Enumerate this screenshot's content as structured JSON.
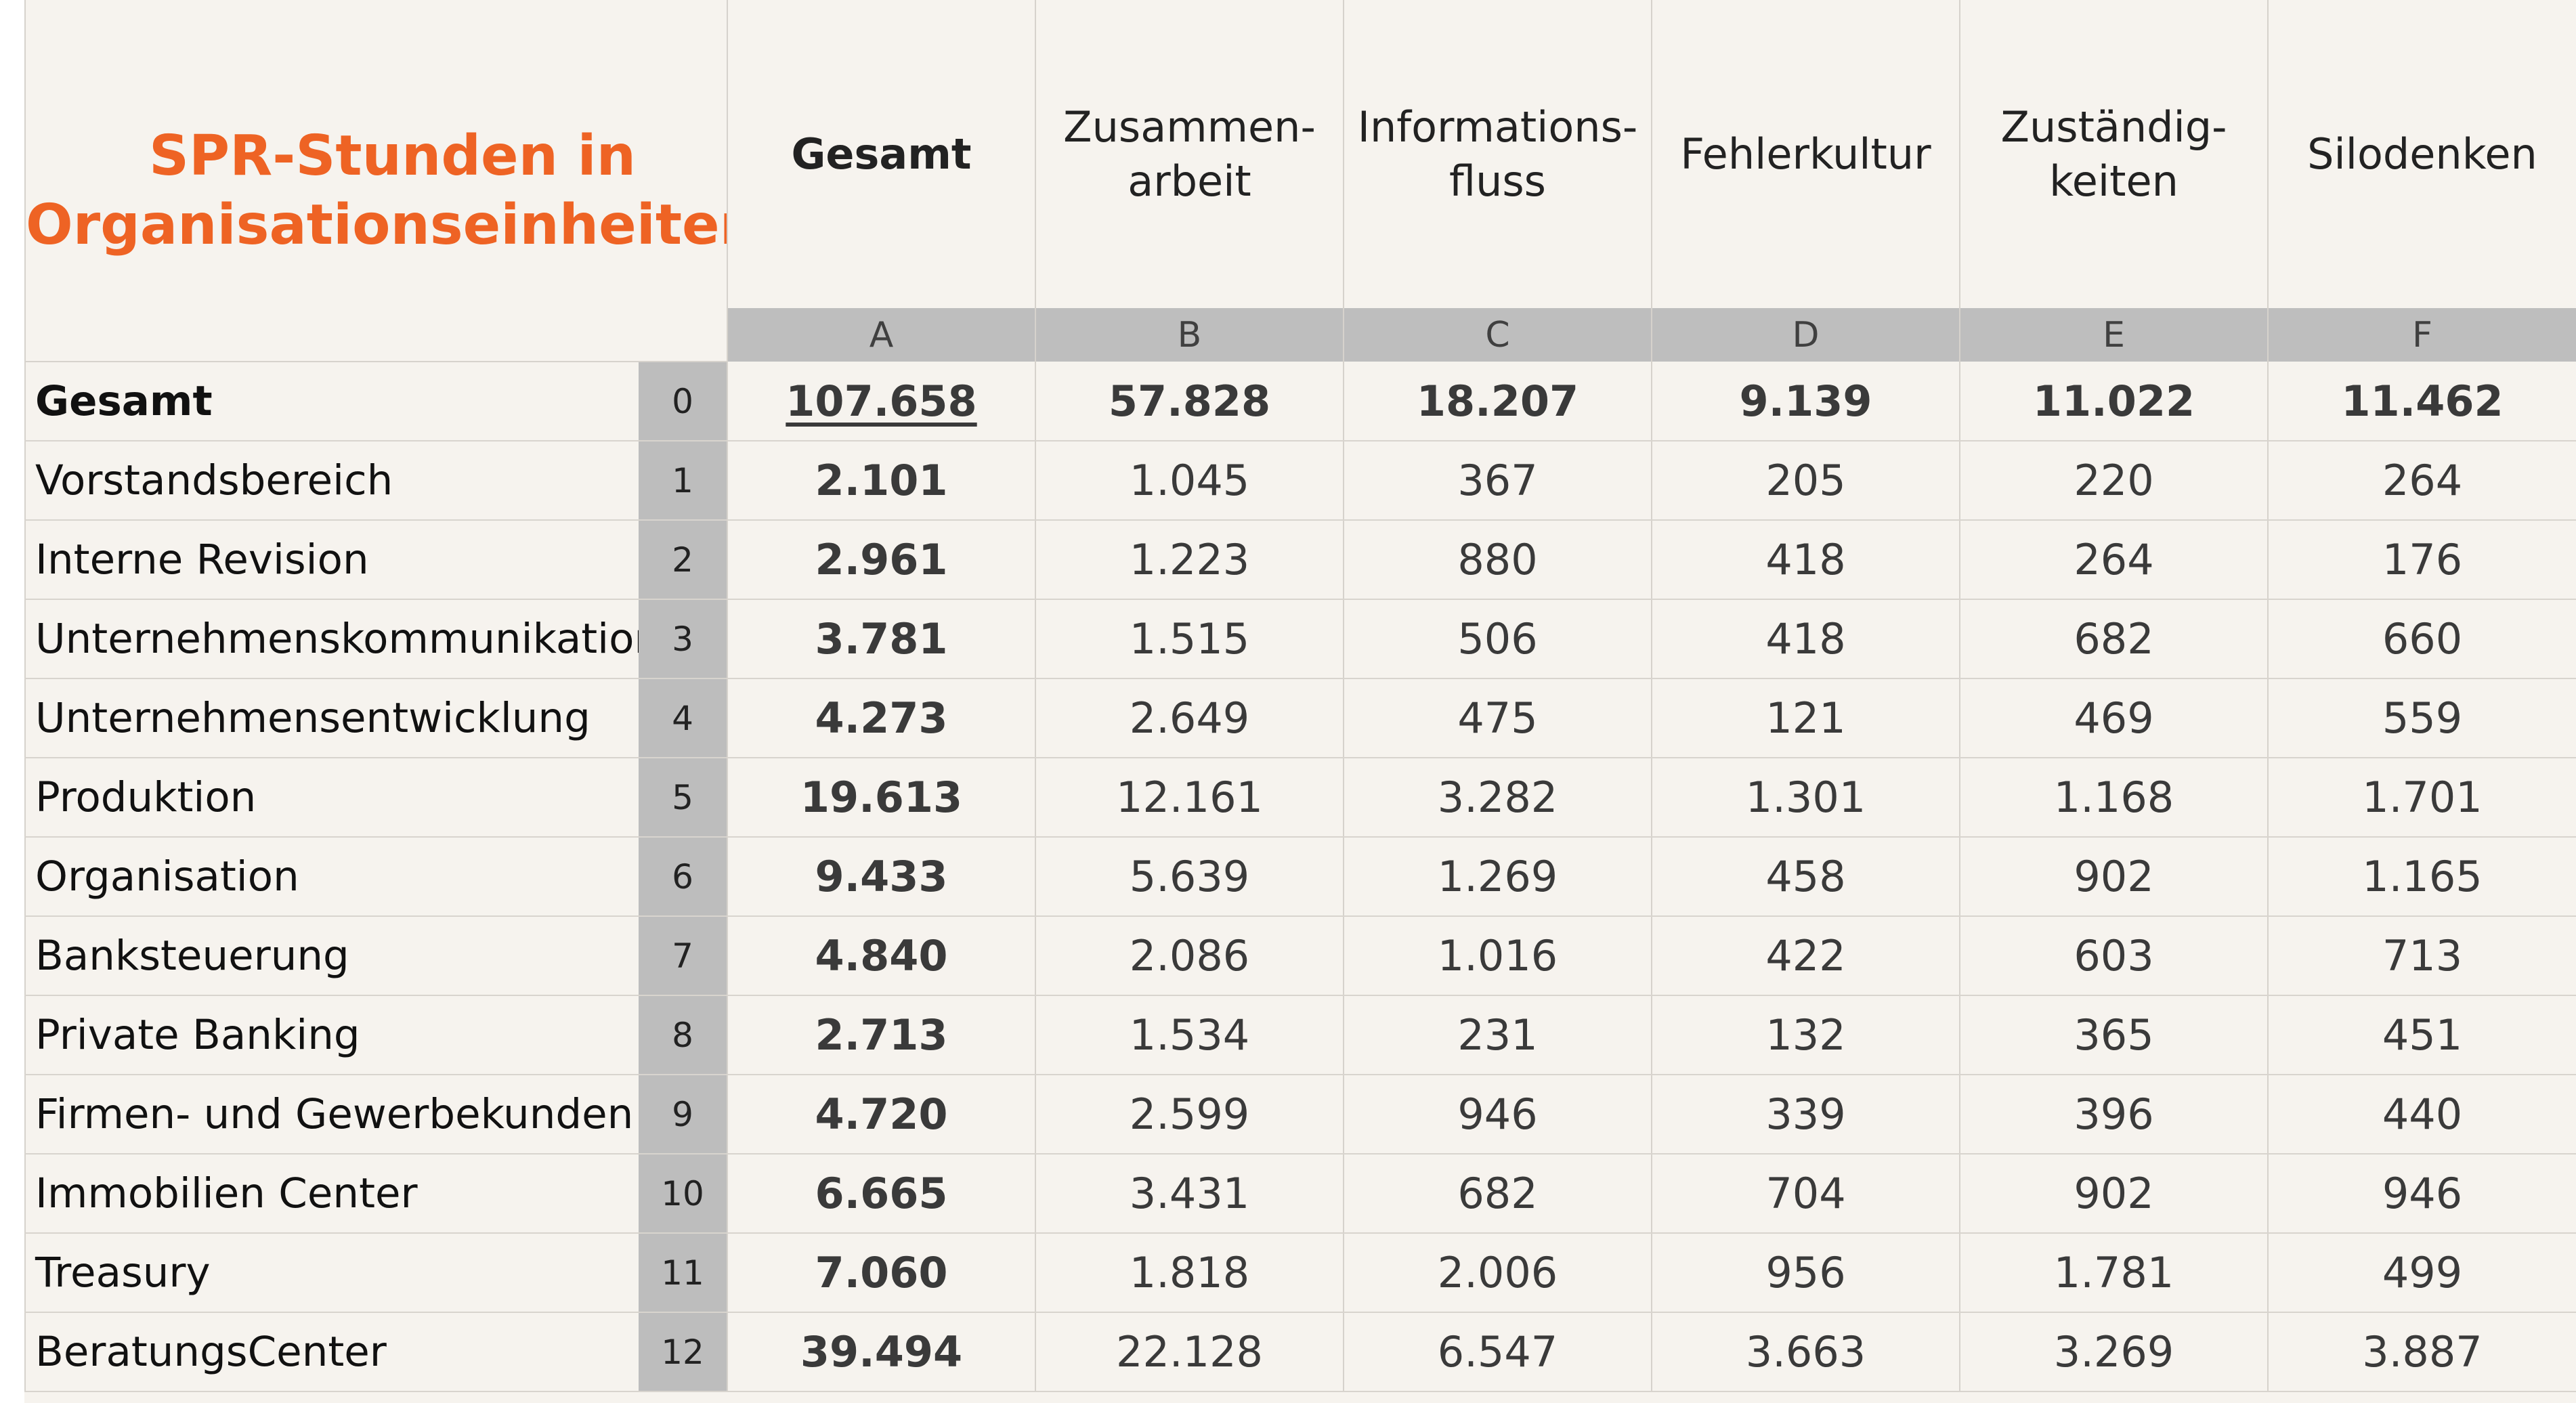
{
  "title": "SPR-Stunden in\nOrganisationseinheiten",
  "accent_color": "#ee6324",
  "columns": [
    {
      "label": "Gesamt",
      "letter": "A",
      "bold": true
    },
    {
      "label": "Zusammen-\narbeit",
      "letter": "B",
      "bold": false
    },
    {
      "label": "Informations-\nfluss",
      "letter": "C",
      "bold": false
    },
    {
      "label": "Fehlerkultur",
      "letter": "D",
      "bold": false
    },
    {
      "label": "Zuständig-\nkeiten",
      "letter": "E",
      "bold": false
    },
    {
      "label": "Silodenken",
      "letter": "F",
      "bold": false
    }
  ],
  "rows": [
    {
      "label": "Gesamt",
      "index": "0",
      "values": [
        "107.658",
        "57.828",
        "18.207",
        "9.139",
        "11.022",
        "11.462"
      ]
    },
    {
      "label": "Vorstandsbereich",
      "index": "1",
      "values": [
        "2.101",
        "1.045",
        "367",
        "205",
        "220",
        "264"
      ]
    },
    {
      "label": "Interne Revision",
      "index": "2",
      "values": [
        "2.961",
        "1.223",
        "880",
        "418",
        "264",
        "176"
      ]
    },
    {
      "label": "Unternehmenskommunikation",
      "index": "3",
      "values": [
        "3.781",
        "1.515",
        "506",
        "418",
        "682",
        "660"
      ]
    },
    {
      "label": "Unternehmensentwicklung",
      "index": "4",
      "values": [
        "4.273",
        "2.649",
        "475",
        "121",
        "469",
        "559"
      ]
    },
    {
      "label": "Produktion",
      "index": "5",
      "values": [
        "19.613",
        "12.161",
        "3.282",
        "1.301",
        "1.168",
        "1.701"
      ]
    },
    {
      "label": "Organisation",
      "index": "6",
      "values": [
        "9.433",
        "5.639",
        "1.269",
        "458",
        "902",
        "1.165"
      ]
    },
    {
      "label": "Banksteuerung",
      "index": "7",
      "values": [
        "4.840",
        "2.086",
        "1.016",
        "422",
        "603",
        "713"
      ]
    },
    {
      "label": "Private Banking",
      "index": "8",
      "values": [
        "2.713",
        "1.534",
        "231",
        "132",
        "365",
        "451"
      ]
    },
    {
      "label": "Firmen- und Gewerbekunden",
      "index": "9",
      "values": [
        "4.720",
        "2.599",
        "946",
        "339",
        "396",
        "440"
      ]
    },
    {
      "label": "Immobilien Center",
      "index": "10",
      "values": [
        "6.665",
        "3.431",
        "682",
        "704",
        "902",
        "946"
      ]
    },
    {
      "label": "Treasury",
      "index": "11",
      "values": [
        "7.060",
        "1.818",
        "2.006",
        "956",
        "1.781",
        "499"
      ]
    },
    {
      "label": "BeratungsCenter",
      "index": "12",
      "values": [
        "39.494",
        "22.128",
        "6.547",
        "3.663",
        "3.269",
        "3.887"
      ]
    }
  ]
}
